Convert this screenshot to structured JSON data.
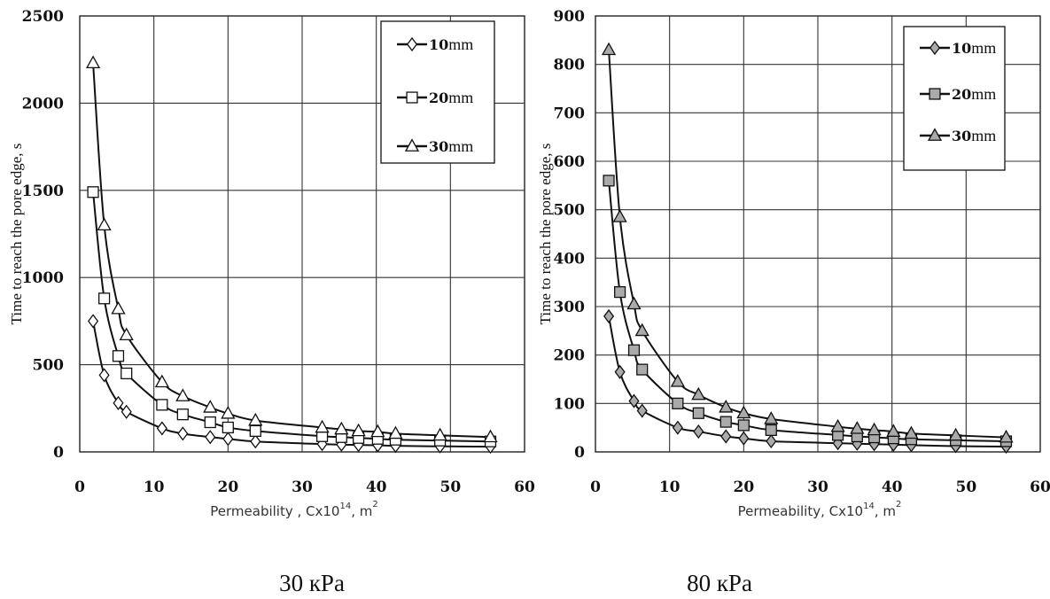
{
  "chart_data": [
    {
      "type": "line",
      "title": "",
      "caption": "30 кPa",
      "xlabel": {
        "text": "Permeability , Cx10",
        "exponent": "14",
        "unit_text": ", m",
        "unit_exponent": "2"
      },
      "ylabel": "Time to reach the pore edge, s",
      "xlim": [
        0,
        60
      ],
      "ylim": [
        0,
        2500
      ],
      "x_ticks": [
        "0",
        "10",
        "20",
        "30",
        "40",
        "50",
        "60"
      ],
      "y_ticks": [
        "0",
        "500",
        "1000",
        "1500",
        "2000",
        "2500"
      ],
      "grid": true,
      "legend_position": "top-right",
      "marker_fill": "#ffffff",
      "x": [
        1.8,
        3.3,
        5.2,
        6.3,
        11.1,
        13.9,
        17.6,
        20.0,
        23.7,
        32.7,
        35.3,
        37.6,
        40.2,
        42.6,
        48.6,
        55.4
      ],
      "series": [
        {
          "name": "10",
          "unit": "mm",
          "marker": "diamond",
          "values": [
            750,
            440,
            280,
            230,
            135,
            105,
            85,
            75,
            60,
            45,
            42,
            40,
            38,
            35,
            32,
            30
          ]
        },
        {
          "name": "20",
          "unit": "mm",
          "marker": "square",
          "values": [
            1490,
            880,
            550,
            450,
            270,
            215,
            170,
            140,
            120,
            90,
            85,
            80,
            75,
            70,
            65,
            60
          ]
        },
        {
          "name": "30",
          "unit": "mm",
          "marker": "triangle",
          "values": [
            2230,
            1300,
            820,
            670,
            400,
            320,
            255,
            220,
            180,
            140,
            130,
            120,
            115,
            105,
            95,
            85
          ]
        }
      ]
    },
    {
      "type": "line",
      "title": "",
      "caption": "80 кPa",
      "xlabel": {
        "text": "Permeability, Cx10",
        "exponent": "14",
        "unit_text": ", m",
        "unit_exponent": "2"
      },
      "ylabel": "Time to reach the pore edge, s",
      "xlim": [
        0,
        60
      ],
      "ylim": [
        0,
        900
      ],
      "x_ticks": [
        "0",
        "10",
        "20",
        "30",
        "40",
        "50",
        "60"
      ],
      "y_ticks": [
        "0",
        "100",
        "200",
        "300",
        "400",
        "500",
        "600",
        "700",
        "800",
        "900"
      ],
      "grid": true,
      "legend_position": "top-right",
      "marker_fill": "#aaaaaa",
      "x": [
        1.8,
        3.3,
        5.2,
        6.3,
        11.1,
        13.9,
        17.6,
        20.0,
        23.7,
        32.7,
        35.3,
        37.6,
        40.2,
        42.6,
        48.6,
        55.4
      ],
      "series": [
        {
          "name": "10",
          "unit": "mm",
          "marker": "diamond",
          "values": [
            280,
            165,
            105,
            85,
            50,
            42,
            32,
            28,
            22,
            18,
            17,
            16,
            15,
            14,
            12,
            11
          ]
        },
        {
          "name": "20",
          "unit": "mm",
          "marker": "square",
          "values": [
            560,
            330,
            210,
            170,
            100,
            80,
            62,
            55,
            45,
            35,
            32,
            30,
            28,
            26,
            24,
            22
          ]
        },
        {
          "name": "30",
          "unit": "mm",
          "marker": "triangle",
          "values": [
            830,
            485,
            305,
            250,
            145,
            118,
            92,
            80,
            68,
            52,
            48,
            45,
            42,
            38,
            34,
            30
          ]
        }
      ]
    }
  ]
}
